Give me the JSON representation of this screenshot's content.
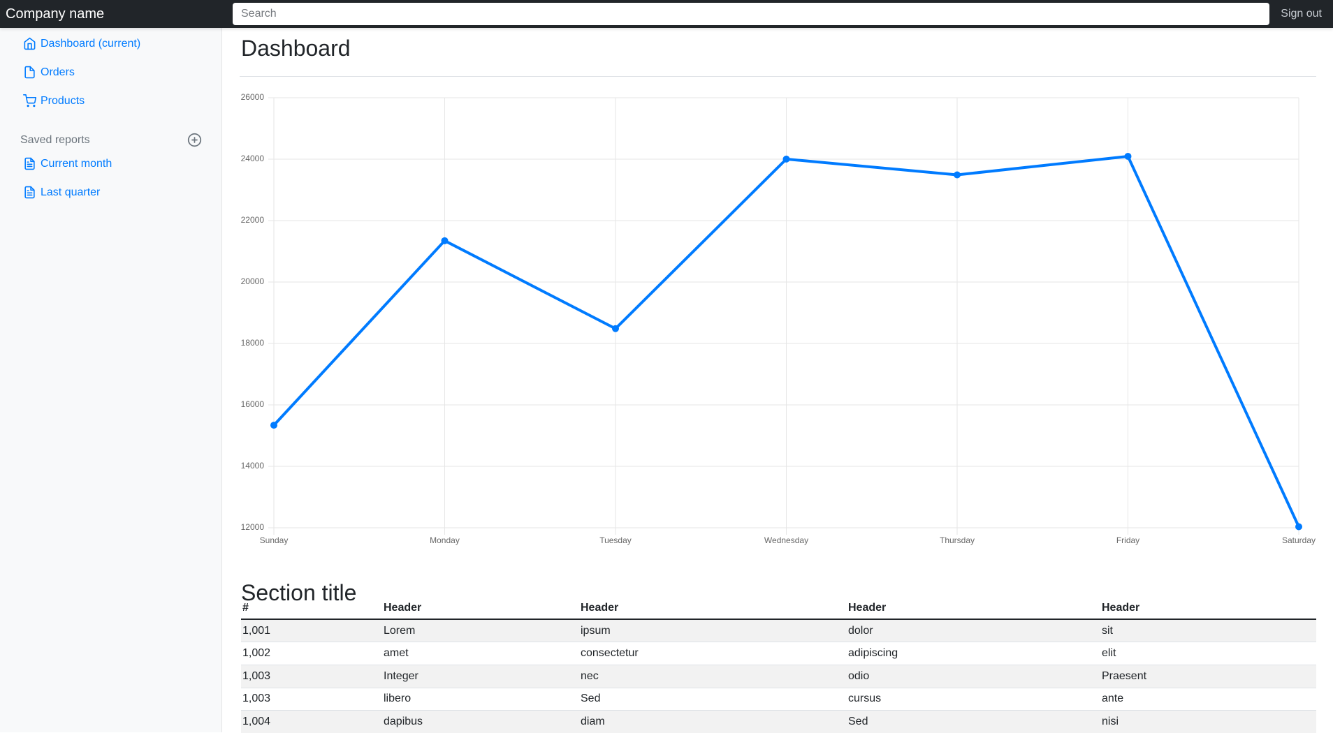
{
  "navbar": {
    "brand": "Company name",
    "search": {
      "placeholder": "Search"
    },
    "sign_out_label": "Sign out"
  },
  "sidebar": {
    "nav_items": [
      {
        "label": "Dashboard (current)",
        "icon": "home-icon",
        "active": true
      },
      {
        "label": "Orders",
        "icon": "file-icon",
        "active": false
      },
      {
        "label": "Products",
        "icon": "shopping-cart-icon",
        "active": false
      }
    ],
    "saved_reports": {
      "heading": "Saved reports",
      "add_icon": "plus-circle-icon",
      "items": [
        {
          "label": "Current month",
          "icon": "file-text-icon"
        },
        {
          "label": "Last quarter",
          "icon": "file-text-icon"
        }
      ]
    }
  },
  "main": {
    "page_title": "Dashboard",
    "section_title": "Section title"
  },
  "chart_data": {
    "type": "line",
    "categories": [
      "Sunday",
      "Monday",
      "Tuesday",
      "Wednesday",
      "Thursday",
      "Friday",
      "Saturday"
    ],
    "values": [
      15339,
      21345,
      18483,
      24003,
      23489,
      24092,
      12034
    ],
    "y_ticks": [
      26000,
      24000,
      22000,
      20000,
      18000,
      16000,
      14000,
      12000
    ],
    "ylim": [
      12000,
      26000
    ],
    "title": "",
    "xlabel": "",
    "ylabel": "",
    "grid": true,
    "legend_position": "none",
    "line_color": "#007bff",
    "point_color": "#007bff"
  },
  "table": {
    "columns": [
      "#",
      "Header",
      "Header",
      "Header",
      "Header"
    ],
    "rows": [
      [
        "1,001",
        "Lorem",
        "ipsum",
        "dolor",
        "sit"
      ],
      [
        "1,002",
        "amet",
        "consectetur",
        "adipiscing",
        "elit"
      ],
      [
        "1,003",
        "Integer",
        "nec",
        "odio",
        "Praesent"
      ],
      [
        "1,003",
        "libero",
        "Sed",
        "cursus",
        "ante"
      ],
      [
        "1,004",
        "dapibus",
        "diam",
        "Sed",
        "nisi"
      ]
    ]
  },
  "colors": {
    "accent": "#007bff",
    "navbar_bg": "#212529",
    "navbar_text": "#ffffff",
    "signout_text": "#c6cbd1",
    "sidebar_bg": "#f8f9fa",
    "muted": "#6c757d",
    "stripe": "#f2f2f2",
    "row_border": "#dee2e6",
    "header_border": "#212529",
    "rule": "#dee2e6",
    "grid": "#e6e6e6",
    "axis_label": "#666666",
    "text": "#212529"
  }
}
